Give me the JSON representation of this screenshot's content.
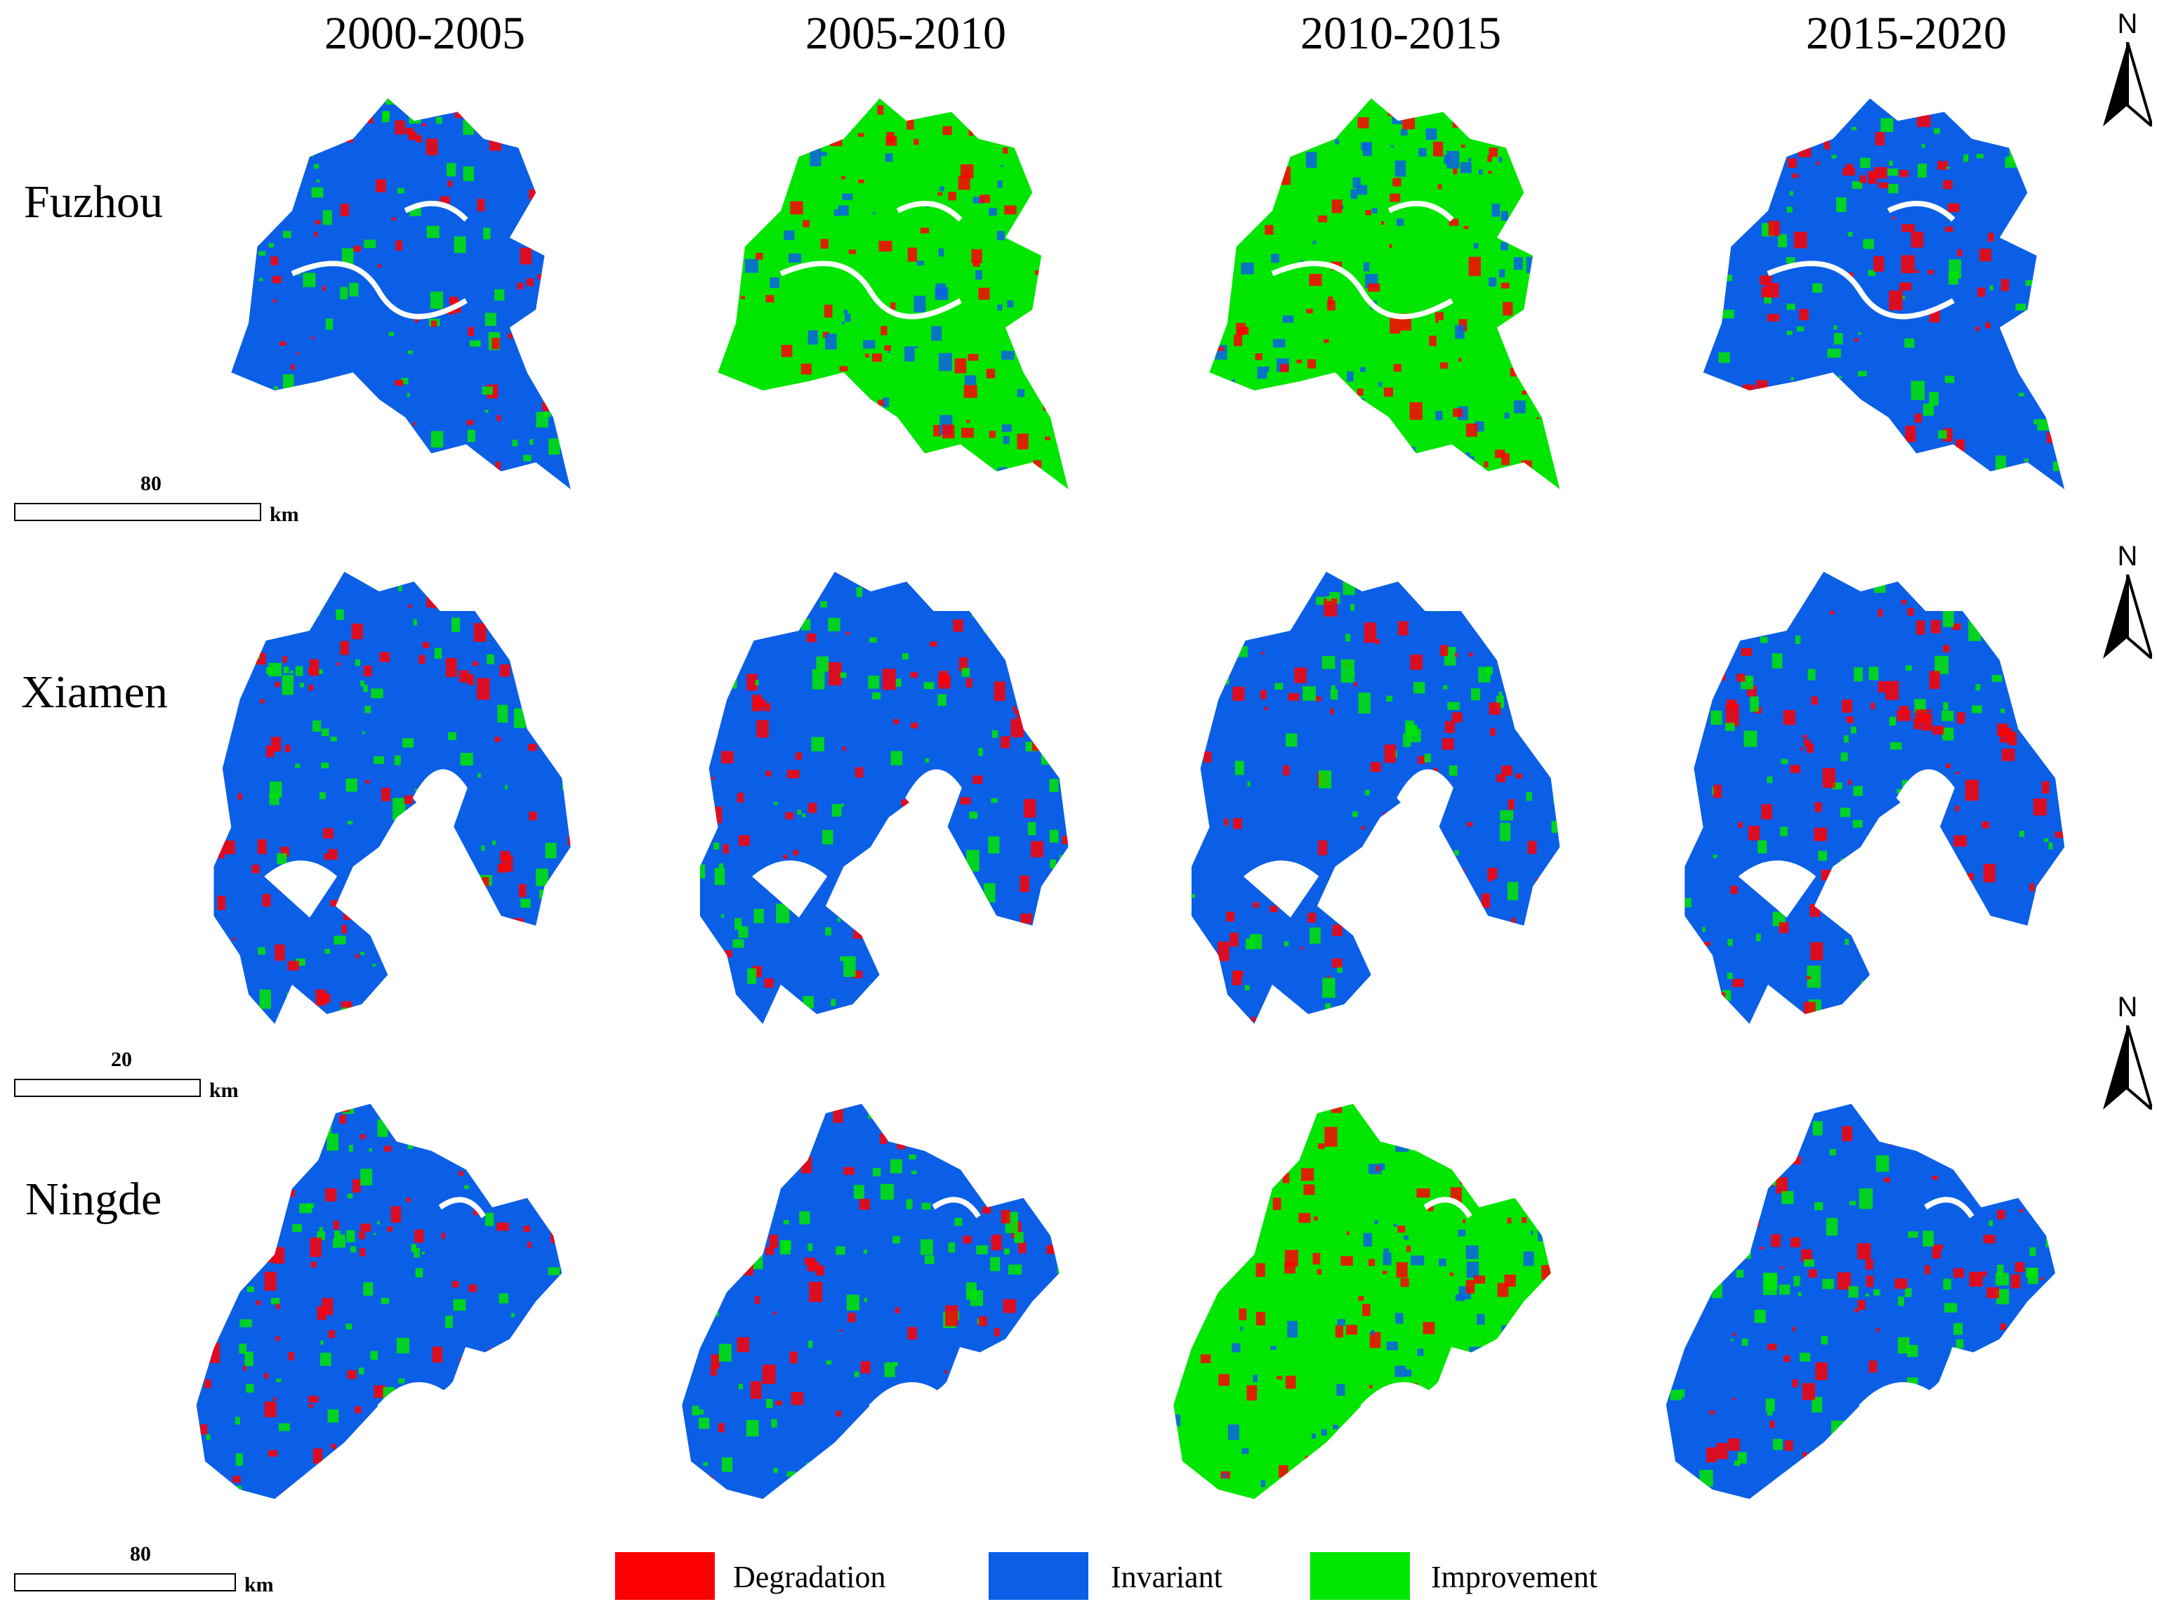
{
  "periods": [
    "2000-2005",
    "2005-2010",
    "2010-2015",
    "2015-2020"
  ],
  "cities": [
    "Fuzhou",
    "Xiamen",
    "Ningde"
  ],
  "north_label": "N",
  "scalebars": [
    {
      "value": "80",
      "unit": "km"
    },
    {
      "value": "20",
      "unit": "km"
    },
    {
      "value": "80",
      "unit": "km"
    }
  ],
  "legend": [
    {
      "label": "Degradation",
      "color": "#ff0000"
    },
    {
      "label": "Invariant",
      "color": "#0a5fe6"
    },
    {
      "label": "Improvement",
      "color": "#00e600"
    }
  ],
  "dominant_class": {
    "Fuzhou": [
      "Invariant",
      "Improvement",
      "Improvement",
      "Invariant"
    ],
    "Xiamen": [
      "Invariant",
      "Invariant",
      "Invariant",
      "Invariant"
    ],
    "Ningde": [
      "Invariant",
      "Invariant",
      "Improvement",
      "Invariant"
    ]
  }
}
